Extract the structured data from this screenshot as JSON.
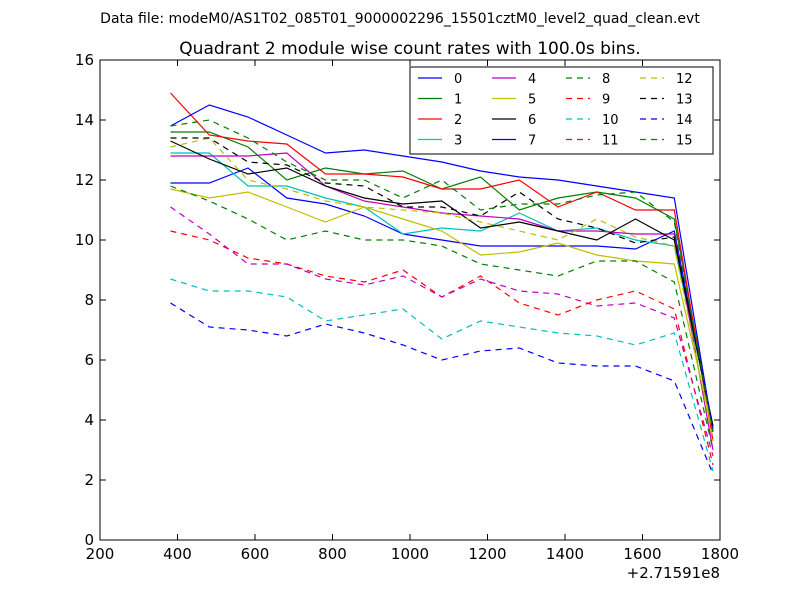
{
  "chart_data": {
    "type": "line",
    "suptitle": "Data file: modeM0/AS1T02_085T01_9000002296_15501cztM0_level2_quad_clean.evt",
    "title": "Quadrant 2 module wise count rates with 100.0s bins.",
    "xlabel": "",
    "ylabel": "",
    "x_offset_label": "+2.71591e8",
    "xlim": [
      200,
      1800
    ],
    "ylim": [
      0,
      16
    ],
    "xticks": [
      200,
      400,
      600,
      800,
      1000,
      1200,
      1400,
      1600,
      1800
    ],
    "yticks": [
      0,
      2,
      4,
      6,
      8,
      10,
      12,
      14,
      16
    ],
    "grid": false,
    "legend_position": "top-right",
    "legend_columns": 4,
    "x": [
      382,
      482,
      582,
      682,
      782,
      882,
      982,
      1082,
      1182,
      1282,
      1382,
      1482,
      1582,
      1682,
      1782
    ],
    "series": [
      {
        "name": "0",
        "color": "#0000ff",
        "style": "solid",
        "values": [
          11.9,
          11.9,
          12.4,
          11.4,
          11.2,
          10.8,
          10.2,
          10.0,
          9.8,
          9.8,
          9.8,
          9.8,
          9.7,
          10.3,
          3.7
        ]
      },
      {
        "name": "1",
        "color": "#008000",
        "style": "solid",
        "values": [
          13.6,
          13.6,
          13.1,
          12.0,
          12.4,
          12.2,
          12.3,
          11.7,
          12.1,
          11.0,
          11.4,
          11.6,
          11.4,
          10.7,
          3.7
        ]
      },
      {
        "name": "2",
        "color": "#ff0000",
        "style": "solid",
        "values": [
          14.9,
          13.5,
          13.3,
          13.2,
          12.2,
          12.2,
          12.1,
          11.7,
          11.7,
          12.0,
          11.1,
          11.6,
          11.0,
          11.0,
          3.3
        ]
      },
      {
        "name": "3",
        "color": "#00bfbf",
        "style": "solid",
        "values": [
          12.9,
          12.9,
          11.8,
          11.8,
          11.4,
          11.1,
          10.2,
          10.4,
          10.3,
          10.9,
          10.3,
          10.4,
          10.0,
          9.8,
          3.8
        ]
      },
      {
        "name": "4",
        "color": "#bf00bf",
        "style": "solid",
        "values": [
          12.8,
          12.8,
          12.8,
          12.9,
          11.8,
          11.3,
          11.1,
          10.9,
          10.8,
          10.7,
          10.3,
          10.3,
          10.2,
          10.2,
          3.0
        ]
      },
      {
        "name": "5",
        "color": "#bfbf00",
        "style": "solid",
        "values": [
          11.7,
          11.4,
          11.6,
          11.1,
          10.6,
          11.1,
          10.7,
          10.3,
          9.5,
          9.6,
          9.9,
          9.5,
          9.3,
          9.2,
          3.6
        ]
      },
      {
        "name": "6",
        "color": "#000000",
        "style": "solid",
        "values": [
          13.3,
          12.7,
          12.2,
          12.4,
          11.8,
          11.4,
          11.2,
          11.3,
          10.4,
          10.6,
          10.3,
          10.0,
          10.7,
          10.0,
          3.8
        ]
      },
      {
        "name": "7",
        "color": "#0000ff",
        "style": "solid",
        "values": [
          13.8,
          14.5,
          14.1,
          13.5,
          12.9,
          13.0,
          12.8,
          12.6,
          12.3,
          12.1,
          12.0,
          11.8,
          11.6,
          11.4,
          3.6
        ]
      },
      {
        "name": "8",
        "color": "#008000",
        "style": "dashed",
        "values": [
          11.8,
          11.3,
          10.7,
          10.0,
          10.3,
          10.0,
          10.0,
          9.8,
          9.2,
          9.0,
          8.8,
          9.3,
          9.3,
          8.6,
          3.0
        ]
      },
      {
        "name": "9",
        "color": "#ff0000",
        "style": "dashed",
        "values": [
          10.3,
          10.0,
          9.4,
          9.2,
          8.8,
          8.6,
          9.0,
          8.1,
          8.8,
          7.9,
          7.5,
          8.0,
          8.3,
          7.7,
          2.5
        ]
      },
      {
        "name": "10",
        "color": "#00bfbf",
        "style": "dashed",
        "values": [
          8.7,
          8.3,
          8.3,
          8.1,
          7.3,
          7.5,
          7.7,
          6.7,
          7.3,
          7.1,
          6.9,
          6.8,
          6.5,
          6.9,
          2.3
        ]
      },
      {
        "name": "11",
        "color": "#bf00bf",
        "style": "dashed",
        "values": [
          11.1,
          10.2,
          9.2,
          9.2,
          8.7,
          8.5,
          8.8,
          8.1,
          8.7,
          8.3,
          8.2,
          7.8,
          7.9,
          7.4,
          2.8
        ]
      },
      {
        "name": "12",
        "color": "#bfbf00",
        "style": "dashed",
        "values": [
          13.1,
          13.4,
          12.0,
          11.7,
          11.3,
          11.1,
          11.0,
          10.9,
          10.6,
          10.3,
          10.0,
          10.7,
          10.1,
          9.8,
          3.3
        ]
      },
      {
        "name": "13",
        "color": "#000000",
        "style": "dashed",
        "values": [
          13.4,
          13.4,
          12.6,
          12.5,
          11.9,
          11.8,
          11.1,
          11.1,
          10.8,
          11.6,
          10.7,
          10.4,
          9.9,
          10.1,
          3.7
        ]
      },
      {
        "name": "14",
        "color": "#0000ff",
        "style": "dashed",
        "values": [
          7.9,
          7.1,
          7.0,
          6.8,
          7.2,
          6.9,
          6.5,
          6.0,
          6.3,
          6.4,
          5.9,
          5.8,
          5.8,
          5.3,
          2.2
        ]
      },
      {
        "name": "15",
        "color": "#008000",
        "style": "dashed",
        "values": [
          13.8,
          14.0,
          13.4,
          12.6,
          12.0,
          12.0,
          11.4,
          12.0,
          11.0,
          11.2,
          11.2,
          11.5,
          11.6,
          10.6,
          3.6
        ]
      }
    ]
  }
}
